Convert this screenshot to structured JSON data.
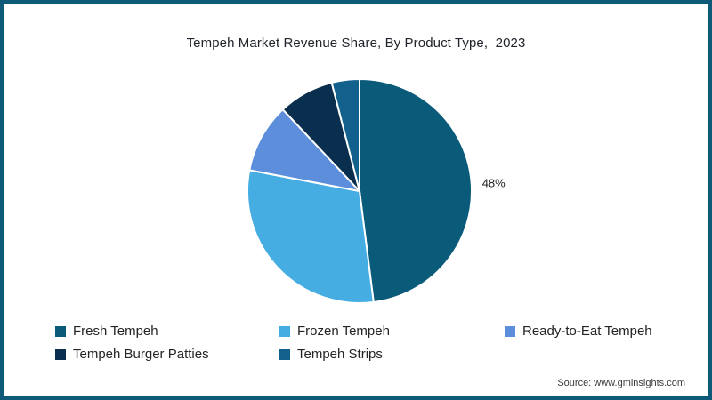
{
  "frame": {
    "border_color": "#0e5a78"
  },
  "title": "Tempeh Market Revenue Share, By Product Type,  2023",
  "chart_data": {
    "type": "pie",
    "title": "Tempeh Market Revenue Share, By Product Type, 2023",
    "start_angle_deg": -90,
    "direction": "clockwise",
    "legend_position": "bottom",
    "series": [
      {
        "name": "Fresh Tempeh",
        "value": 48,
        "color": "#0a5a7a",
        "label": "48%"
      },
      {
        "name": "Frozen Tempeh",
        "value": 30,
        "color": "#45ade2",
        "label": ""
      },
      {
        "name": "Ready-to-Eat Tempeh",
        "value": 10,
        "color": "#5c8edc",
        "label": ""
      },
      {
        "name": "Tempeh Burger Patties",
        "value": 8,
        "color": "#0a2e4e",
        "label": ""
      },
      {
        "name": "Tempeh Strips",
        "value": 4,
        "color": "#12618c",
        "label": ""
      }
    ]
  },
  "source": "Source: www.gminsights.com"
}
